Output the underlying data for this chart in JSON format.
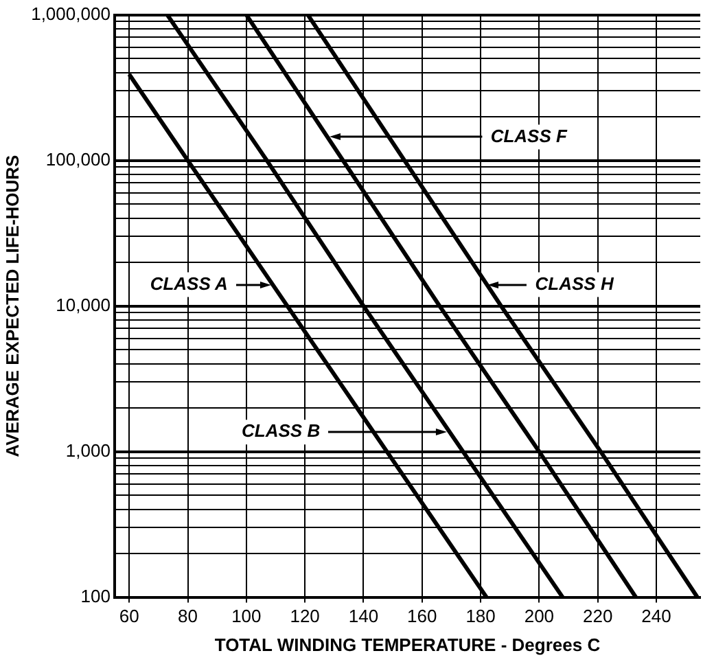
{
  "chart_data": {
    "type": "line",
    "xlabel": "TOTAL WINDING TEMPERATURE - Degrees C",
    "ylabel": "AVERAGE EXPECTED LIFE-HOURS",
    "series": [
      {
        "color": "#000000",
        "x": [
          60,
          80,
          114,
          148,
          182
        ],
        "values": [
          390000,
          100000,
          10000,
          1000,
          100
        ]
      },
      {
        "color": "#000000",
        "x": [
          73,
          107,
          140,
          174,
          208
        ],
        "values": [
          1000000,
          100000,
          10000,
          1000,
          100
        ]
      },
      {
        "color": "#000000",
        "x": [
          100,
          133,
          166,
          200,
          233
        ],
        "values": [
          1000000,
          100000,
          10000,
          1000,
          100
        ]
      },
      {
        "color": "#000000",
        "x": [
          121,
          154,
          187,
          221,
          254
        ],
        "values": [
          1000000,
          100000,
          10000,
          1000,
          100
        ]
      }
    ],
    "annotations": [
      {
        "text": "CLASS A",
        "x": 109,
        "y": 14000
      },
      {
        "text": "CLASS B",
        "x": 169,
        "y": 1360
      },
      {
        "text": "CLASS F",
        "x": 128,
        "y": 145000
      },
      {
        "text": "CLASS H",
        "x": 182,
        "y": 14000
      }
    ],
    "log": "y",
    "xlim": [
      55,
      255
    ],
    "ylim": [
      100,
      1000000
    ],
    "xticks": [
      60,
      80,
      100,
      120,
      140,
      160,
      180,
      200,
      220,
      240
    ],
    "yticks": [
      {
        "value": 100,
        "label": "100"
      },
      {
        "value": 200,
        "label": null
      },
      {
        "value": 300,
        "label": null
      },
      {
        "value": 400,
        "label": null
      },
      {
        "value": 500,
        "label": null
      },
      {
        "value": 600,
        "label": null
      },
      {
        "value": 700,
        "label": null
      },
      {
        "value": 800,
        "label": null
      },
      {
        "value": 900,
        "label": null
      },
      {
        "value": 1000,
        "label": "1,000"
      },
      {
        "value": 2000,
        "label": null
      },
      {
        "value": 3000,
        "label": null
      },
      {
        "value": 4000,
        "label": null
      },
      {
        "value": 5000,
        "label": null
      },
      {
        "value": 6000,
        "label": null
      },
      {
        "value": 7000,
        "label": null
      },
      {
        "value": 8000,
        "label": null
      },
      {
        "value": 9000,
        "label": null
      },
      {
        "value": 10000,
        "label": "10,000"
      },
      {
        "value": 20000,
        "label": null
      },
      {
        "value": 30000,
        "label": null
      },
      {
        "value": 40000,
        "label": null
      },
      {
        "value": 50000,
        "label": null
      },
      {
        "value": 60000,
        "label": null
      },
      {
        "value": 70000,
        "label": null
      },
      {
        "value": 80000,
        "label": null
      },
      {
        "value": 90000,
        "label": null
      },
      {
        "value": 100000,
        "label": "100,000"
      },
      {
        "value": 200000,
        "label": null
      },
      {
        "value": 300000,
        "label": null
      },
      {
        "value": 400000,
        "label": null
      },
      {
        "value": 500000,
        "label": null
      },
      {
        "value": 600000,
        "label": null
      },
      {
        "value": 700000,
        "label": null
      },
      {
        "value": 800000,
        "label": null
      },
      {
        "value": 900000,
        "label": null
      },
      {
        "value": 1000000,
        "label": "1,000,000"
      }
    ],
    "grid": true,
    "legend": false,
    "marker": "none",
    "line_style": "solid"
  }
}
